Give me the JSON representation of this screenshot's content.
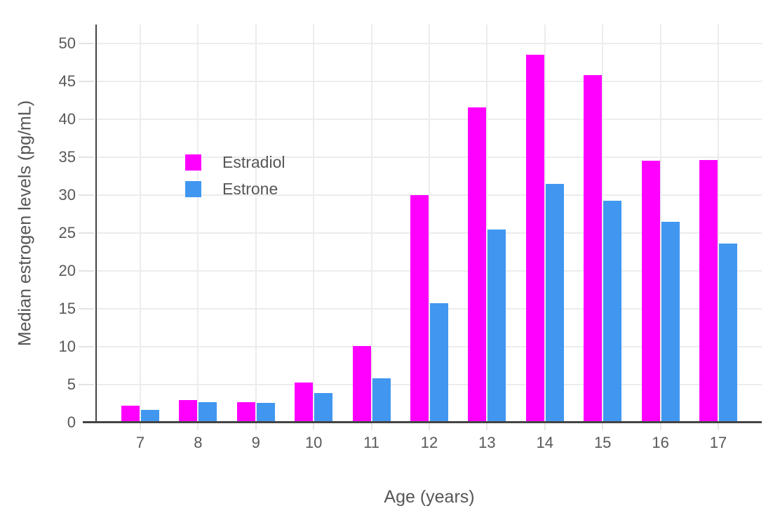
{
  "chart_data": {
    "type": "bar",
    "title": "",
    "xlabel": "Age (years)",
    "ylabel": "Median estrogen levels (pg/mL)",
    "categories": [
      "7",
      "8",
      "9",
      "10",
      "11",
      "12",
      "13",
      "14",
      "15",
      "16",
      "17"
    ],
    "series": [
      {
        "name": "Estradiol",
        "color": "#ff00ff",
        "values": [
          2.2,
          3.0,
          2.7,
          5.3,
          10.1,
          30.0,
          41.6,
          48.5,
          45.8,
          34.5,
          34.6
        ]
      },
      {
        "name": "Estrone",
        "color": "#4197f0",
        "values": [
          1.7,
          2.7,
          2.6,
          3.9,
          5.8,
          15.7,
          25.5,
          31.5,
          29.3,
          26.5,
          23.6
        ]
      }
    ],
    "ylim": [
      0,
      52.5
    ],
    "yticks": [
      0,
      5,
      10,
      15,
      20,
      25,
      30,
      35,
      40,
      45,
      50
    ],
    "grid": true,
    "legend_position": "inside-upper-left",
    "axis_color": "#444444",
    "grid_color": "#ececec",
    "text_color": "#565656",
    "background_color": "#ffffff"
  }
}
